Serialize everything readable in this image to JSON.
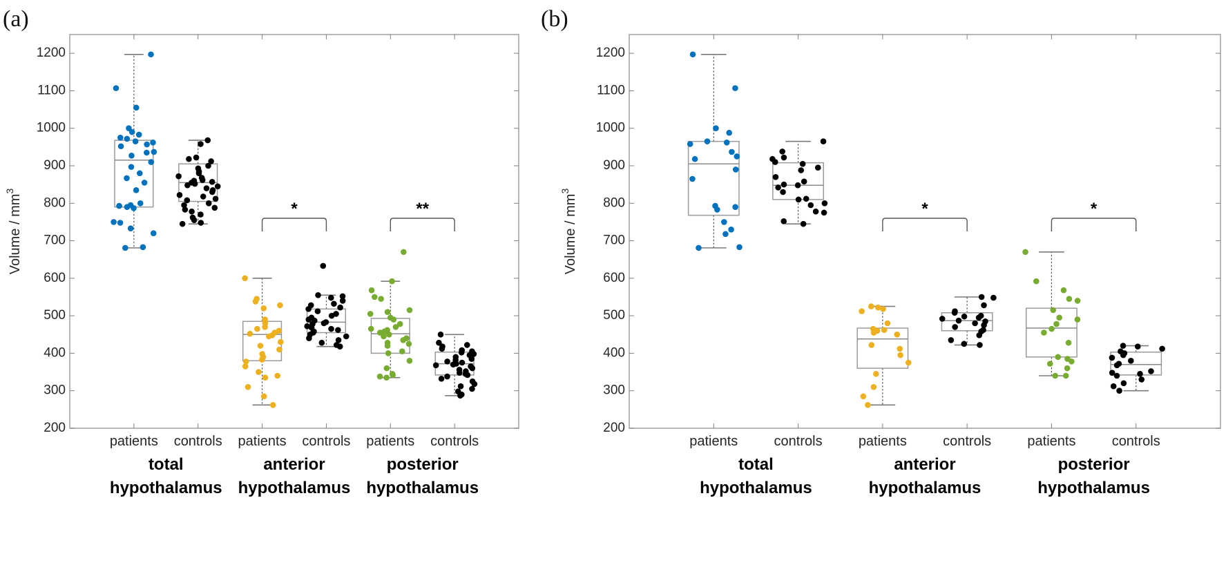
{
  "figure": {
    "panels": [
      "(a)",
      "(b)"
    ]
  },
  "chart_data": [
    {
      "type": "box",
      "panel_label": "(a)",
      "ylabel": "Volume / mm",
      "ylabel_superscript": "3",
      "ylim": [
        200,
        1250
      ],
      "yticks": [
        200,
        300,
        400,
        500,
        600,
        700,
        800,
        900,
        1000,
        1100,
        1200
      ],
      "grid": false,
      "categories": [
        "patients",
        "controls",
        "patients",
        "controls",
        "patients",
        "controls"
      ],
      "groups": [
        {
          "line1": "total",
          "line2": "hypothalamus"
        },
        {
          "line1": "anterior",
          "line2": "hypothalamus"
        },
        {
          "line1": "posterior",
          "line2": "hypothalamus"
        }
      ],
      "colors": {
        "total_patients": "#0072BD",
        "anterior_patients": "#EDB120",
        "posterior_patients": "#77AC30",
        "controls": "#000000"
      },
      "series": [
        {
          "name": "total patients",
          "color": "#0072BD",
          "q1": 790,
          "median": 915,
          "q3": 968,
          "whisker_low": 681,
          "whisker_high": 1197,
          "points": [
            1197,
            1107,
            1055,
            1000,
            990,
            983,
            975,
            972,
            965,
            962,
            957,
            952,
            937,
            935,
            927,
            910,
            897,
            880,
            867,
            855,
            835,
            800,
            795,
            793,
            790,
            787,
            750,
            748,
            733,
            720,
            683,
            681
          ]
        },
        {
          "name": "total controls",
          "color": "#000000",
          "q1": 805,
          "median": 855,
          "q3": 905,
          "whisker_low": 745,
          "whisker_high": 968,
          "points": [
            968,
            958,
            922,
            918,
            912,
            900,
            893,
            885,
            880,
            872,
            868,
            862,
            860,
            857,
            855,
            852,
            848,
            845,
            840,
            835,
            830,
            822,
            818,
            812,
            808,
            800,
            795,
            788,
            783,
            778,
            770,
            762,
            755,
            748,
            745
          ]
        },
        {
          "name": "anterior patients",
          "color": "#EDB120",
          "q1": 380,
          "median": 450,
          "q3": 485,
          "whisker_low": 262,
          "whisker_high": 600,
          "points": [
            600,
            545,
            538,
            528,
            520,
            490,
            485,
            480,
            470,
            465,
            460,
            455,
            452,
            448,
            445,
            430,
            420,
            410,
            398,
            390,
            383,
            378,
            365,
            350,
            340,
            335,
            310,
            285,
            262
          ]
        },
        {
          "name": "anterior controls",
          "color": "#000000",
          "q1": 455,
          "median": 483,
          "q3": 518,
          "whisker_low": 418,
          "whisker_high": 555,
          "outliers": [
            633
          ],
          "points": [
            633,
            555,
            552,
            548,
            540,
            532,
            528,
            522,
            518,
            512,
            505,
            500,
            495,
            490,
            487,
            483,
            480,
            478,
            472,
            468,
            465,
            462,
            458,
            455,
            450,
            445,
            440,
            435,
            428,
            422,
            418
          ]
        },
        {
          "name": "posterior patients",
          "color": "#77AC30",
          "q1": 400,
          "median": 452,
          "q3": 493,
          "whisker_low": 335,
          "whisker_high": 592,
          "outliers": [
            670
          ],
          "points": [
            670,
            592,
            568,
            550,
            545,
            515,
            510,
            505,
            495,
            490,
            478,
            470,
            465,
            462,
            458,
            455,
            450,
            445,
            440,
            435,
            428,
            425,
            420,
            405,
            400,
            380,
            360,
            345,
            342,
            338,
            335
          ]
        },
        {
          "name": "posterior controls",
          "color": "#000000",
          "q1": 342,
          "median": 372,
          "q3": 403,
          "whisker_low": 287,
          "whisker_high": 450,
          "points": [
            450,
            428,
            422,
            418,
            412,
            408,
            405,
            402,
            398,
            395,
            390,
            385,
            382,
            378,
            375,
            372,
            370,
            368,
            365,
            360,
            356,
            352,
            348,
            345,
            342,
            338,
            332,
            325,
            318,
            312,
            305,
            298,
            290,
            287
          ]
        }
      ],
      "significance": [
        {
          "between": [
            2,
            3
          ],
          "label": "*"
        },
        {
          "between": [
            4,
            5
          ],
          "label": "**"
        }
      ]
    },
    {
      "type": "box",
      "panel_label": "(b)",
      "ylabel": "Volume / mm",
      "ylabel_superscript": "3",
      "ylim": [
        200,
        1250
      ],
      "yticks": [
        200,
        300,
        400,
        500,
        600,
        700,
        800,
        900,
        1000,
        1100,
        1200
      ],
      "grid": false,
      "categories": [
        "patients",
        "controls",
        "patients",
        "controls",
        "patients",
        "controls"
      ],
      "groups": [
        {
          "line1": "total",
          "line2": "hypothalamus"
        },
        {
          "line1": "anterior",
          "line2": "hypothalamus"
        },
        {
          "line1": "posterior",
          "line2": "hypothalamus"
        }
      ],
      "series": [
        {
          "name": "total patients",
          "color": "#0072BD",
          "q1": 768,
          "median": 905,
          "q3": 965,
          "whisker_low": 681,
          "whisker_high": 1197,
          "points": [
            1197,
            1107,
            1000,
            988,
            965,
            962,
            958,
            937,
            925,
            918,
            890,
            865,
            793,
            790,
            783,
            750,
            730,
            718,
            683,
            681
          ]
        },
        {
          "name": "total controls",
          "color": "#000000",
          "q1": 810,
          "median": 848,
          "q3": 908,
          "whisker_low": 745,
          "whisker_high": 965,
          "points": [
            965,
            938,
            922,
            918,
            910,
            905,
            895,
            888,
            870,
            858,
            850,
            848,
            842,
            830,
            812,
            810,
            800,
            795,
            778,
            775,
            752,
            745
          ]
        },
        {
          "name": "anterior patients",
          "color": "#EDB120",
          "q1": 360,
          "median": 438,
          "q3": 467,
          "whisker_low": 262,
          "whisker_high": 525,
          "points": [
            525,
            522,
            518,
            512,
            480,
            465,
            462,
            460,
            455,
            450,
            422,
            412,
            395,
            375,
            345,
            310,
            285,
            262
          ]
        },
        {
          "name": "anterior controls",
          "color": "#000000",
          "q1": 460,
          "median": 487,
          "q3": 508,
          "whisker_low": 422,
          "whisker_high": 550,
          "points": [
            550,
            548,
            528,
            512,
            508,
            500,
            498,
            495,
            492,
            487,
            485,
            480,
            475,
            470,
            462,
            458,
            448,
            435,
            425,
            422
          ]
        },
        {
          "name": "posterior patients",
          "color": "#77AC30",
          "q1": 390,
          "median": 467,
          "q3": 520,
          "whisker_low": 340,
          "whisker_high": 670,
          "points": [
            670,
            592,
            568,
            545,
            540,
            515,
            495,
            490,
            478,
            465,
            455,
            428,
            390,
            385,
            378,
            372,
            360,
            340,
            340
          ]
        },
        {
          "name": "posterior controls",
          "color": "#000000",
          "q1": 342,
          "median": 370,
          "q3": 403,
          "whisker_low": 300,
          "whisker_high": 420,
          "points": [
            420,
            418,
            412,
            405,
            400,
            395,
            388,
            380,
            372,
            368,
            352,
            348,
            345,
            340,
            330,
            320,
            312,
            300
          ]
        }
      ],
      "significance": [
        {
          "between": [
            2,
            3
          ],
          "label": "*"
        },
        {
          "between": [
            4,
            5
          ],
          "label": "*"
        }
      ]
    }
  ]
}
